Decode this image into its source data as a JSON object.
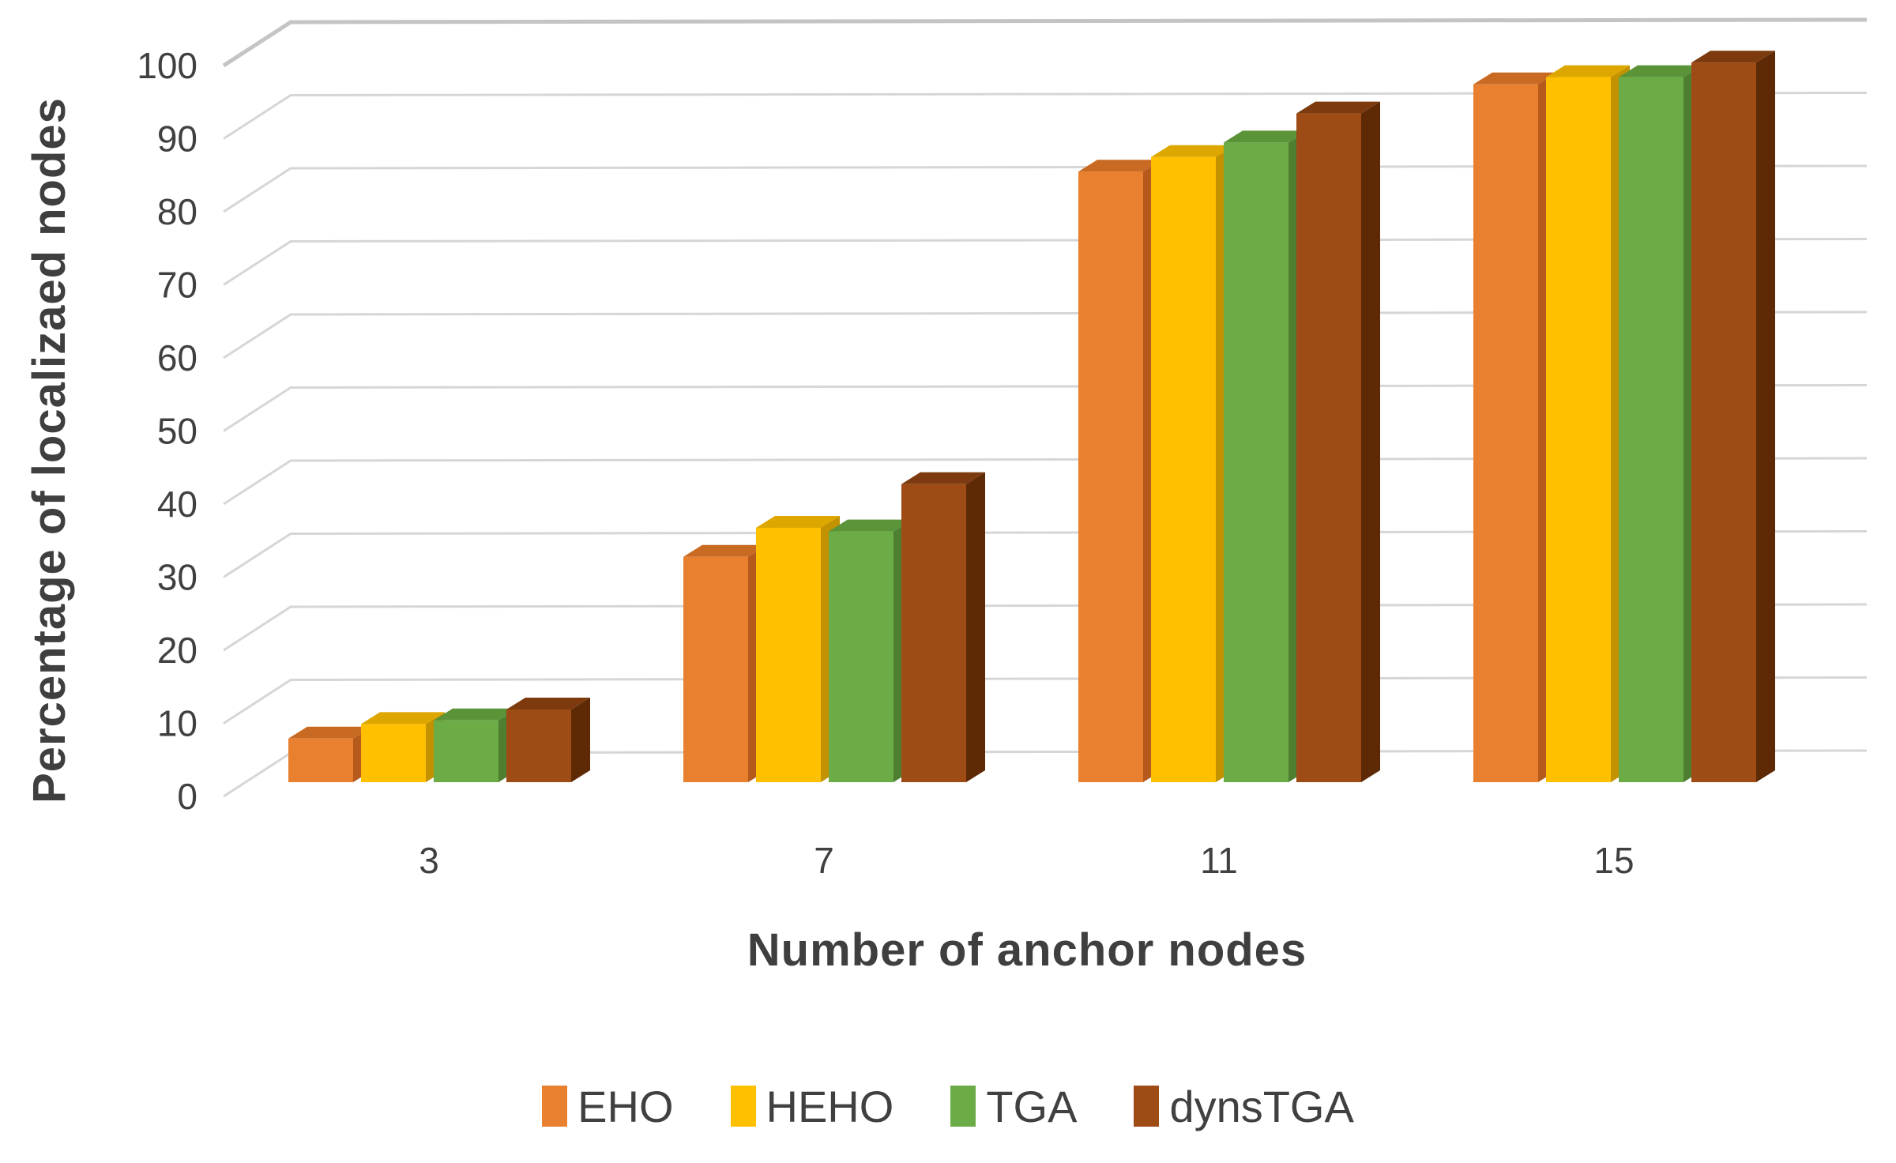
{
  "figure": {
    "background": "#FFFFFF",
    "text_color": "#404040",
    "gridline_color": "#D6D6D6",
    "top_gridline_color": "#C4C4C4"
  },
  "chart_data": {
    "type": "bar",
    "style": "3d-clustered-column",
    "title": "",
    "xlabel": "Number of anchor nodes",
    "ylabel": "Percentage of localizaed nodes",
    "categories": [
      "3",
      "7",
      "11",
      "15"
    ],
    "series": [
      {
        "name": "EHO",
        "color": "#E8802F",
        "top_color": "#C96A22",
        "side_color": "#B55A1C",
        "values": [
          6,
          31,
          84,
          96
        ]
      },
      {
        "name": "HEHO",
        "color": "#FFC000",
        "top_color": "#DDA700",
        "side_color": "#C29200",
        "values": [
          8,
          35,
          86,
          97
        ]
      },
      {
        "name": "TGA",
        "color": "#6CAC47",
        "top_color": "#5B9339",
        "side_color": "#4E7F30",
        "values": [
          8.5,
          34.5,
          88,
          97
        ]
      },
      {
        "name": "dynsTGA",
        "color": "#9E4B16",
        "top_color": "#7C3A0E",
        "side_color": "#5E2A06",
        "values": [
          10,
          41,
          92,
          99
        ]
      }
    ],
    "ylim": [
      0,
      100
    ],
    "yticks": [
      0,
      10,
      20,
      30,
      40,
      50,
      60,
      70,
      80,
      90,
      100
    ],
    "grid": true,
    "legend_position": "bottom"
  }
}
